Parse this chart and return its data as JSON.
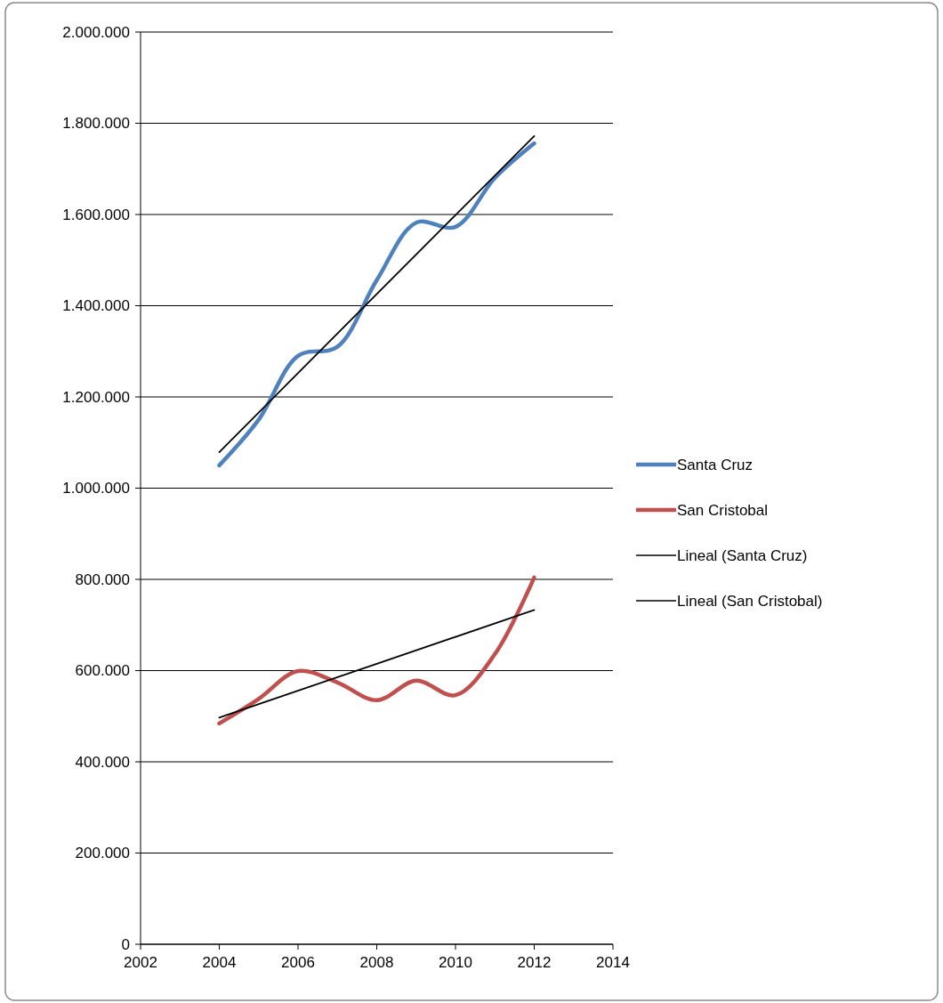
{
  "chart_data": {
    "type": "line",
    "x": [
      2004,
      2005,
      2006,
      2007,
      2008,
      2009,
      2010,
      2011,
      2012
    ],
    "series": [
      {
        "name": "Santa Cruz",
        "color": "#4f81bd",
        "values": [
          1050000,
          1150000,
          1290000,
          1310000,
          1456000,
          1582000,
          1573000,
          1680000,
          1756000
        ]
      },
      {
        "name": "San Cristobal",
        "color": "#c0504d",
        "values": [
          484000,
          538000,
          599000,
          574000,
          535000,
          578000,
          546000,
          636000,
          804000
        ]
      },
      {
        "name": "Lineal (Santa Cruz)",
        "color": "#000000",
        "x": [
          2004,
          2008,
          2012
        ],
        "values": [
          1079000,
          1425500,
          1772000
        ]
      },
      {
        "name": "Lineal (San Cristobal)",
        "color": "#000000",
        "x": [
          2004,
          2008,
          2012
        ],
        "values": [
          497000,
          615000,
          733000
        ]
      }
    ],
    "xlim": [
      2002,
      2014
    ],
    "xticks": [
      2002,
      2004,
      2006,
      2008,
      2010,
      2012,
      2014
    ],
    "ylim": [
      0,
      2000000
    ],
    "yticks": [
      0,
      {
        "value": 200000,
        "label": "200.000"
      },
      {
        "value": 400000,
        "label": "400.000"
      },
      {
        "value": 600000,
        "label": "600.000"
      },
      {
        "value": 800000,
        "label": "800.000"
      },
      {
        "value": 1000000,
        "label": "1.000.000"
      },
      {
        "value": 1200000,
        "label": "1.200.000"
      },
      {
        "value": 1400000,
        "label": "1.400.000"
      },
      {
        "value": 1600000,
        "label": "1.600.000"
      },
      {
        "value": 1800000,
        "label": "1.800.000"
      },
      {
        "value": 2000000,
        "label": "2.000.000"
      }
    ],
    "grid": "y",
    "legend": "right",
    "marker": "none"
  }
}
